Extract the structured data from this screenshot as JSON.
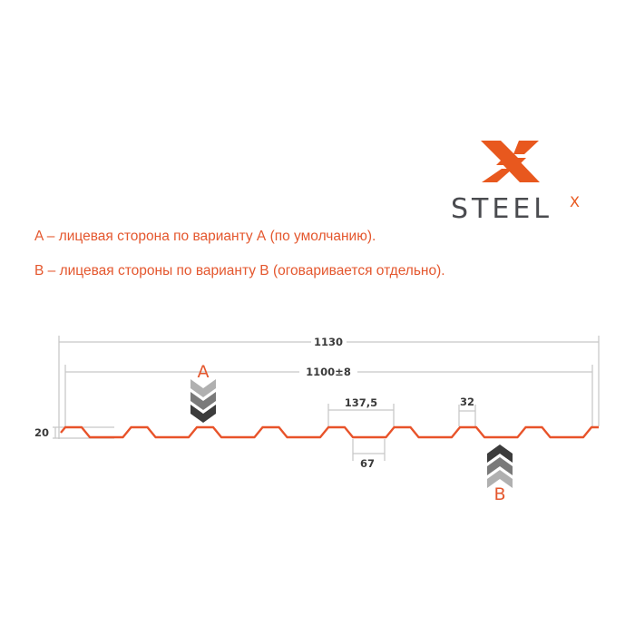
{
  "logo": {
    "text": "STEEL",
    "superscript": "X",
    "colors": {
      "mark": "#e8581e",
      "text": "#4a4b4f"
    }
  },
  "notes": [
    "A – лицевая сторона по варианту А (по умолчанию).",
    "B – лицевая стороны по варианту В (оговаривается отдельно)."
  ],
  "diagram": {
    "profile_color": "#e8532a",
    "dimensions": {
      "total_width": "1130",
      "working_width": "1100±8",
      "pitch": "137,5",
      "bottom_width": "67",
      "top_width": "32",
      "height": "20"
    },
    "side_labels": {
      "a": "A",
      "b": "B"
    }
  }
}
